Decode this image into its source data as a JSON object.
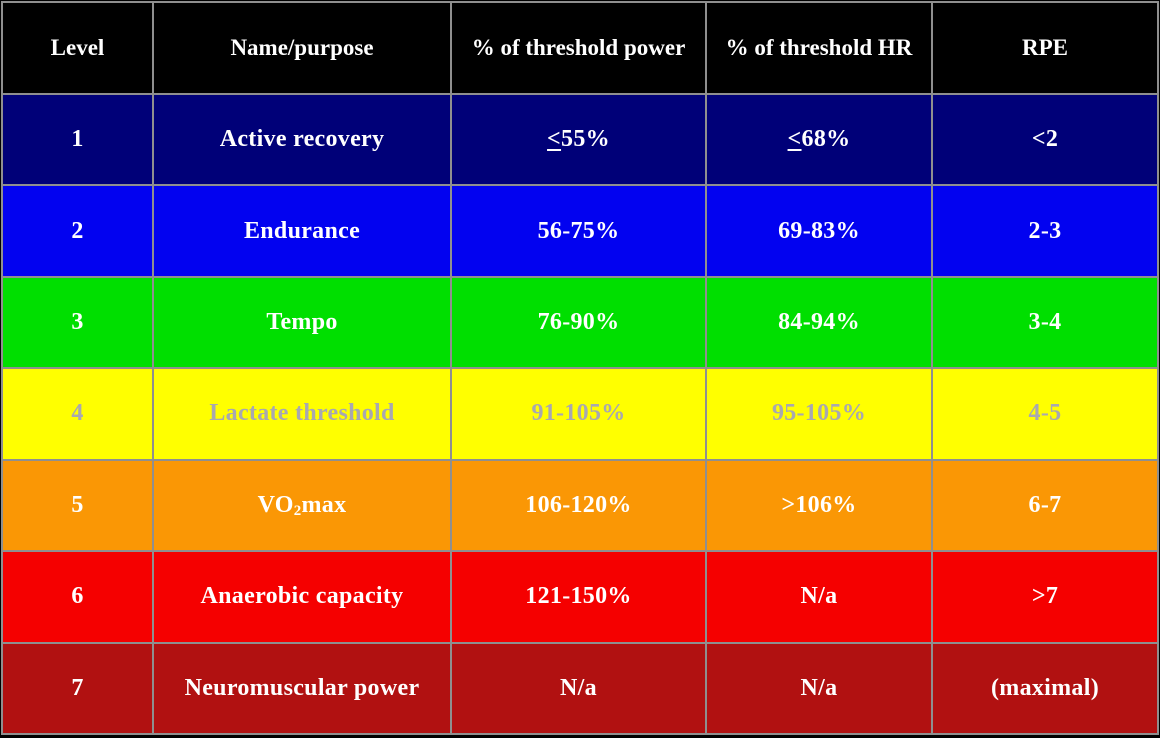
{
  "page": {
    "background_color": "#000000",
    "grid_color": "#8F8F8F"
  },
  "chart_data": {
    "type": "table",
    "columns": [
      "Level",
      "Name/purpose",
      "% of threshold power",
      "% of threshold HR",
      "RPE"
    ],
    "rows": [
      [
        "1",
        "Active recovery",
        "≤55%",
        "≤68%",
        "<2"
      ],
      [
        "2",
        "Endurance",
        "56-75%",
        "69-83%",
        "2-3"
      ],
      [
        "3",
        "Tempo",
        "76-90%",
        "84-94%",
        "3-4"
      ],
      [
        "4",
        "Lactate threshold",
        "91-105%",
        "95-105%",
        "4-5"
      ],
      [
        "5",
        "VO2max",
        "106-120%",
        ">106%",
        "6-7"
      ],
      [
        "6",
        "Anaerobic capacity",
        "121-150%",
        "N/a",
        ">7"
      ],
      [
        "7",
        "Neuromuscular power",
        "N/a",
        "N/a",
        "(maximal)"
      ]
    ],
    "row_bg": [
      "#000078",
      "#0202F0",
      "#00DF00",
      "#FFFF00",
      "#FA9705",
      "#F50000",
      "#B11111"
    ],
    "row_fg": [
      "#FFFFFF",
      "#FFFFFF",
      "#FFFFFF",
      "#A8A8B0",
      "#FFFFFF",
      "#FFFFFF",
      "#FFFFFF"
    ],
    "header_bg": "#000000",
    "header_fg": "#FFFFFF",
    "grid": true,
    "legend_position": "none",
    "notes": {
      "le_rendering": "≤ drawn as underlined <",
      "subscript_cell": "VO2max has subscript 2"
    }
  }
}
